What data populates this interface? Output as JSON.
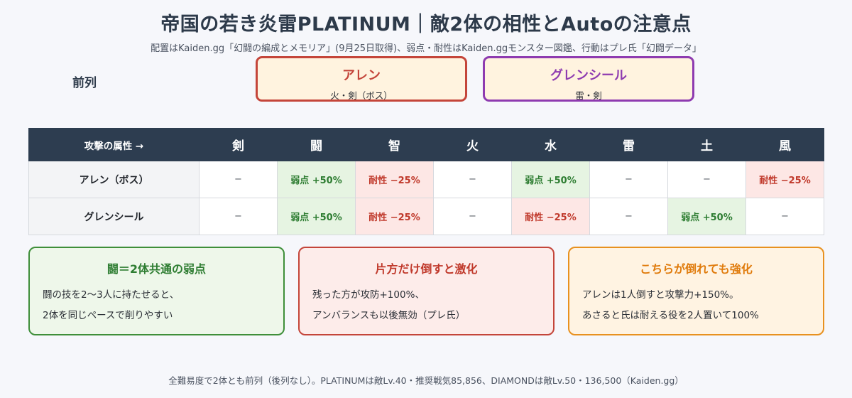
{
  "title": "帝国の若き炎雷PLATINUM｜敵2体の相性とAutoの注意点",
  "subtitle": "配置はKaiden.gg「幻闘の編成とメモリア」(9月25日取得)、弱点・耐性はKaiden.ggモンスター図鑑、行動はプレ氏「幻闘データ」",
  "front_row_label": "前列",
  "enemies": [
    {
      "name": "アレン",
      "attributes": "火・剣（ボス）",
      "color": "#c4453a"
    },
    {
      "name": "グレンシール",
      "attributes": "雷・剣",
      "color": "#8e3bb0"
    }
  ],
  "table": {
    "corner_label": "攻撃の属性 →",
    "columns": [
      "剣",
      "闘",
      "智",
      "火",
      "水",
      "雷",
      "土",
      "風"
    ],
    "rows": [
      {
        "label": "アレン（ボス）",
        "cells": [
          {
            "text": "−",
            "kind": "neutral"
          },
          {
            "text": "弱点 +50%",
            "kind": "weak"
          },
          {
            "text": "耐性 −25%",
            "kind": "resist"
          },
          {
            "text": "−",
            "kind": "neutral"
          },
          {
            "text": "弱点 +50%",
            "kind": "weak"
          },
          {
            "text": "−",
            "kind": "neutral"
          },
          {
            "text": "−",
            "kind": "neutral"
          },
          {
            "text": "耐性 −25%",
            "kind": "resist"
          }
        ]
      },
      {
        "label": "グレンシール",
        "cells": [
          {
            "text": "−",
            "kind": "neutral"
          },
          {
            "text": "弱点 +50%",
            "kind": "weak"
          },
          {
            "text": "耐性 −25%",
            "kind": "resist"
          },
          {
            "text": "−",
            "kind": "neutral"
          },
          {
            "text": "耐性 −25%",
            "kind": "resist"
          },
          {
            "text": "−",
            "kind": "neutral"
          },
          {
            "text": "弱点 +50%",
            "kind": "weak"
          },
          {
            "text": "−",
            "kind": "neutral"
          }
        ]
      }
    ]
  },
  "cards": [
    {
      "title": "闘＝2体共通の弱点",
      "lines": [
        "闘の技を2〜3人に持たせると、",
        "2体を同じペースで削りやすい"
      ],
      "color": "#3f8f3a"
    },
    {
      "title": "片方だけ倒すと激化",
      "lines": [
        "残った方が攻防+100%、",
        "アンバランスも以後無効（プレ氏）"
      ],
      "color": "#c4453a"
    },
    {
      "title": "こちらが倒れても強化",
      "lines": [
        "アレンは1人倒すと攻撃力+150%。",
        "あさると氏は耐える役を2人置いて100%"
      ],
      "color": "#e8911f"
    }
  ],
  "footer": "全難易度で2体とも前列（後列なし）。PLATINUMは敵Lv.40・推奨戦気85,856、DIAMONDは敵Lv.50・136,500（Kaiden.gg）"
}
